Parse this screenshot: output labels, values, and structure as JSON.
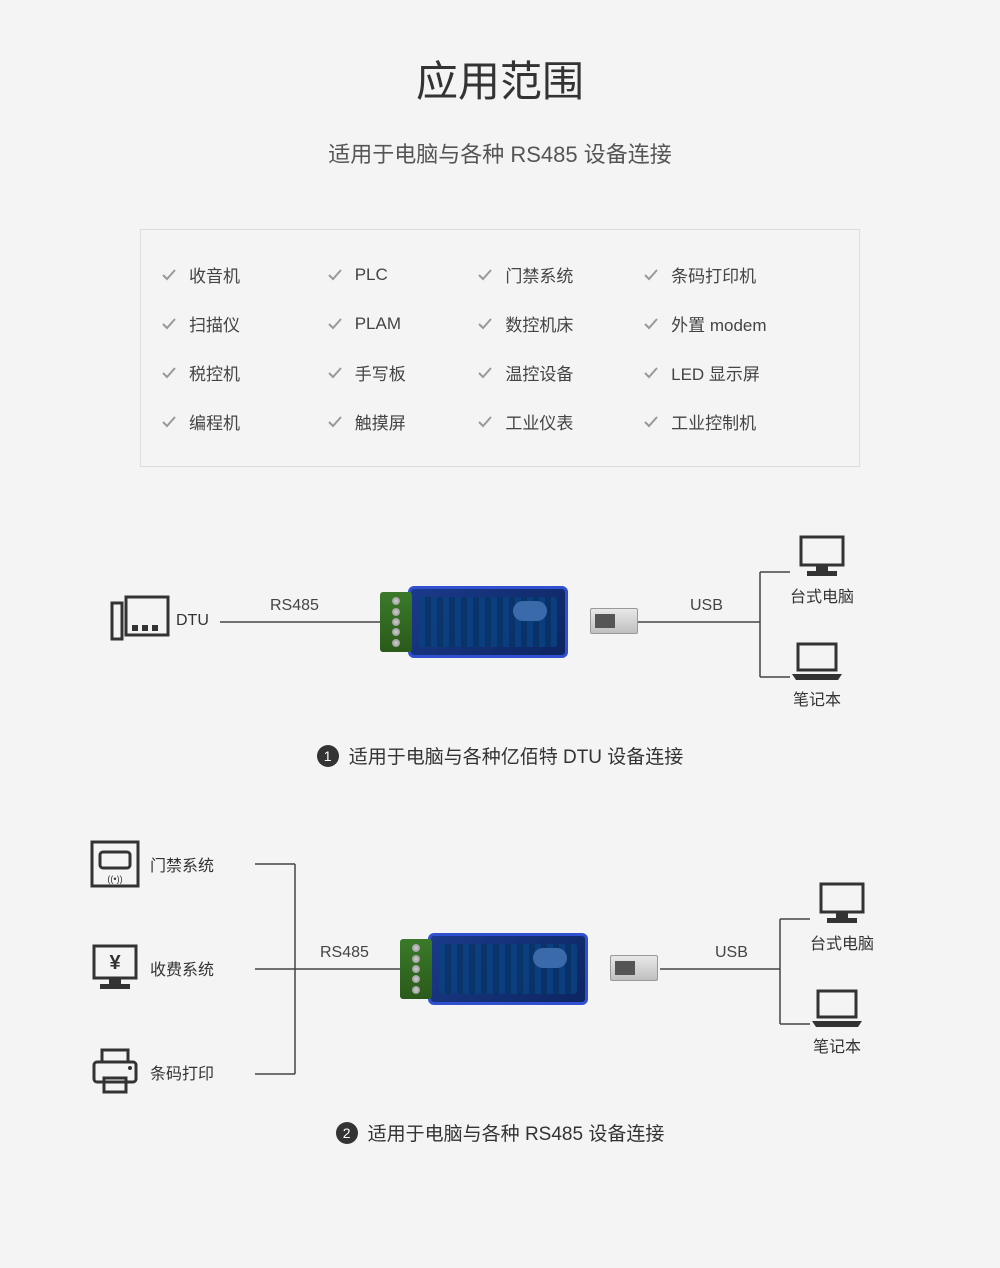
{
  "header": {
    "title": "应用范围",
    "subtitle": "适用于电脑与各种 RS485 设备连接"
  },
  "features": [
    "收音机",
    "PLC",
    "门禁系统",
    "条码打印机",
    "扫描仪",
    "PLAM",
    "数控机床",
    "外置 modem",
    "税控机",
    "手写板",
    "温控设备",
    "LED 显示屏",
    "编程机",
    "触摸屏",
    "工业仪表",
    "工业控制机"
  ],
  "diagram1": {
    "left_device": "DTU",
    "left_protocol": "RS485",
    "right_protocol": "USB",
    "out_top": "台式电脑",
    "out_bottom": "笔记本",
    "caption_num": "1",
    "caption": "适用于电脑与各种亿佰特 DTU 设备连接"
  },
  "diagram2": {
    "in_1": "门禁系统",
    "in_2": "收费系统",
    "in_3": "条码打印",
    "left_protocol": "RS485",
    "right_protocol": "USB",
    "out_top": "台式电脑",
    "out_bottom": "笔记本",
    "caption_num": "2",
    "caption": "适用于电脑与各种 RS485 设备连接"
  },
  "colors": {
    "bg": "#f4f4f4",
    "text": "#333333",
    "muted": "#555555",
    "border": "#dddddd",
    "line": "#444444",
    "device_blue": "#1a3a8a",
    "device_border": "#3050d0",
    "terminal_green": "#3a7a2a"
  }
}
